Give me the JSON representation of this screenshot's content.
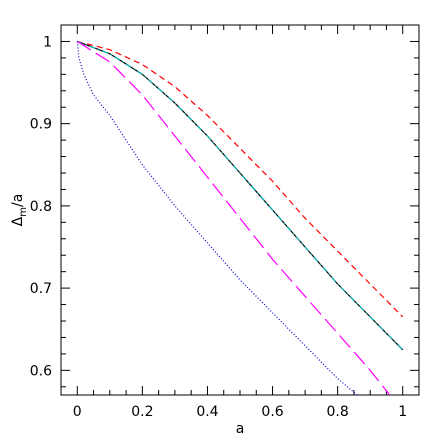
{
  "chart_data": {
    "type": "line",
    "xlabel": "a",
    "ylabel": {
      "main": "Δ",
      "sub": "m",
      "suffix": "/a"
    },
    "xlim": [
      -0.05,
      1.05
    ],
    "ylim": [
      0.57,
      1.02
    ],
    "xticks": [
      0,
      0.2,
      0.4,
      0.6,
      0.8,
      1
    ],
    "xtick_labels": [
      "0",
      "0.2",
      "0.4",
      "0.6",
      "0.8",
      "1"
    ],
    "yticks": [
      0.6,
      0.7,
      0.8,
      0.9,
      1
    ],
    "ytick_labels": [
      "0.6",
      "0.7",
      "0.8",
      "0.9",
      "1"
    ],
    "grid": false,
    "series": [
      {
        "style": "short-dash",
        "color": "#ff0000",
        "x": [
          0,
          0.1,
          0.2,
          0.3,
          0.4,
          0.5,
          0.6,
          0.7,
          0.8,
          0.9,
          1.0
        ],
        "y": [
          1.0,
          0.99,
          0.972,
          0.945,
          0.91,
          0.87,
          0.83,
          0.785,
          0.745,
          0.705,
          0.665
        ]
      },
      {
        "style": "solid",
        "color": "#000000",
        "x": [
          0,
          0.1,
          0.2,
          0.3,
          0.4,
          0.5,
          0.6,
          0.7,
          0.8,
          0.9,
          1.0
        ],
        "y": [
          1.0,
          0.985,
          0.96,
          0.925,
          0.885,
          0.84,
          0.795,
          0.75,
          0.705,
          0.665,
          0.625
        ]
      },
      {
        "style": "dash-dot",
        "color": "#00b8b8",
        "x": [
          0,
          0.1,
          0.2,
          0.3,
          0.4,
          0.5,
          0.6,
          0.7,
          0.8,
          0.9,
          1.0
        ],
        "y": [
          1.0,
          0.985,
          0.96,
          0.925,
          0.885,
          0.84,
          0.795,
          0.75,
          0.705,
          0.665,
          0.625
        ]
      },
      {
        "style": "long-dash",
        "color": "#ff00ff",
        "x": [
          0,
          0.1,
          0.2,
          0.3,
          0.4,
          0.5,
          0.6,
          0.7,
          0.8,
          0.9,
          0.96
        ],
        "y": [
          1.0,
          0.975,
          0.935,
          0.885,
          0.835,
          0.785,
          0.735,
          0.69,
          0.645,
          0.6,
          0.57
        ]
      },
      {
        "style": "dotted",
        "color": "#0000cc",
        "x": [
          0,
          0.005,
          0.02,
          0.05,
          0.1,
          0.2,
          0.3,
          0.4,
          0.5,
          0.6,
          0.7,
          0.8,
          0.86
        ],
        "y": [
          1.0,
          0.98,
          0.96,
          0.935,
          0.91,
          0.85,
          0.8,
          0.755,
          0.71,
          0.67,
          0.63,
          0.59,
          0.57
        ]
      }
    ]
  }
}
